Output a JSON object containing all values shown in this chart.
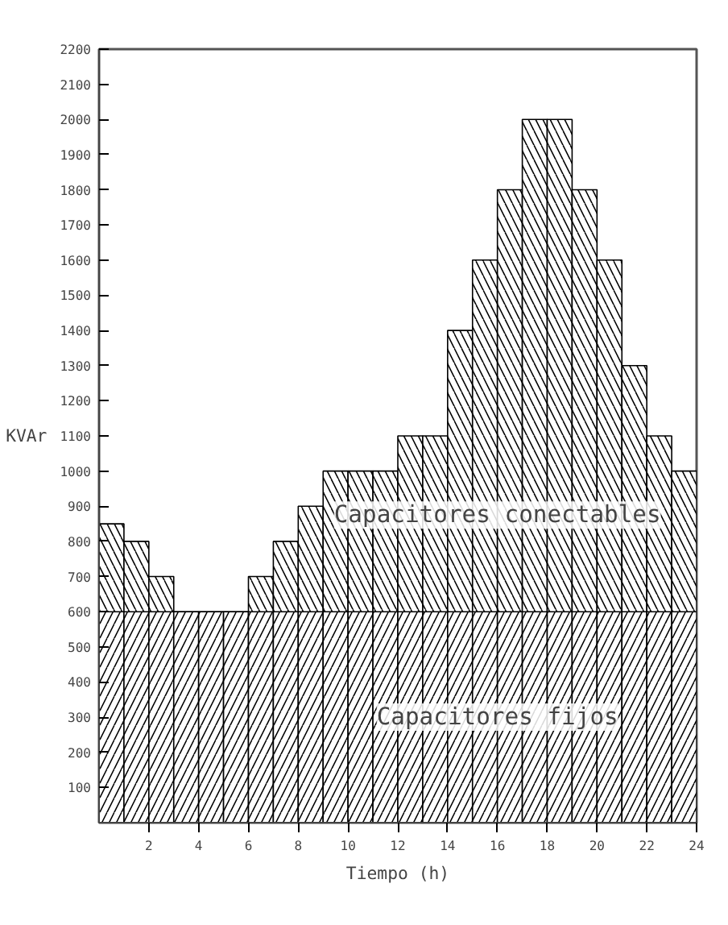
{
  "chart_data": {
    "type": "bar",
    "stacked": true,
    "xlabel": "Tiempo (h)",
    "ylabel": "KVAr",
    "x": [
      0.5,
      1.5,
      2.5,
      3.5,
      4.5,
      5.5,
      6.5,
      7.5,
      8.5,
      9.5,
      10.5,
      11.5,
      12.5,
      13.5,
      14.5,
      15.5,
      16.5,
      17.5,
      18.5,
      19.5,
      20.5,
      21.5,
      22.5,
      23.5
    ],
    "series": [
      {
        "name": "Capacitores fijos",
        "color": "#000000",
        "values": [
          600,
          600,
          600,
          600,
          600,
          600,
          600,
          600,
          600,
          600,
          600,
          600,
          600,
          600,
          600,
          600,
          600,
          600,
          600,
          600,
          600,
          600,
          600,
          600
        ]
      },
      {
        "name": "Capacitores conectables",
        "color": "#000000",
        "values": [
          250,
          200,
          100,
          0,
          0,
          0,
          100,
          200,
          300,
          400,
          400,
          400,
          500,
          500,
          800,
          1000,
          1200,
          1400,
          1400,
          1200,
          1000,
          700,
          500,
          400
        ]
      }
    ],
    "xlim": [
      0,
      24
    ],
    "xticks": [
      2,
      4,
      6,
      8,
      10,
      12,
      14,
      16,
      18,
      20,
      22,
      24
    ],
    "ylim": [
      0,
      2200
    ],
    "yticks": [
      100,
      200,
      300,
      400,
      500,
      600,
      700,
      800,
      900,
      1000,
      1100,
      1200,
      1300,
      1400,
      1500,
      1600,
      1700,
      1800,
      1900,
      2000,
      2100,
      2200
    ],
    "grid": false
  }
}
